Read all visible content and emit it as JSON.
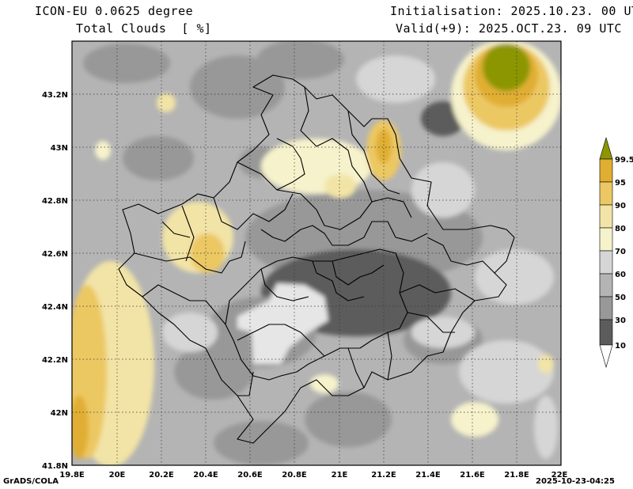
{
  "header": {
    "model_line": "ICON-EU 0.0625 degree",
    "variable_line": "Total Clouds  [ %]",
    "init_line": "Initialisation: 2025.10.23. 00 UTC",
    "valid_line": "Valid(+9): 2025.OCT.23. 09 UTC"
  },
  "footer": {
    "credit": "GrADS/COLA",
    "timestamp": "2025-10-23-04:25"
  },
  "map": {
    "lat_range": [
      41.8,
      43.4
    ],
    "lon_range": [
      19.8,
      22.0
    ],
    "lat_ticks": [
      {
        "value": 41.8,
        "label": "41.8N"
      },
      {
        "value": 42.0,
        "label": "42N"
      },
      {
        "value": 42.2,
        "label": "42.2N"
      },
      {
        "value": 42.4,
        "label": "42.4N"
      },
      {
        "value": 42.6,
        "label": "42.6N"
      },
      {
        "value": 42.8,
        "label": "42.8N"
      },
      {
        "value": 43.0,
        "label": "43N"
      },
      {
        "value": 43.2,
        "label": "43.2N"
      }
    ],
    "lon_ticks": [
      {
        "value": 19.8,
        "label": "19.8E"
      },
      {
        "value": 20.0,
        "label": "20E"
      },
      {
        "value": 20.2,
        "label": "20.2E"
      },
      {
        "value": 20.4,
        "label": "20.4E"
      },
      {
        "value": 20.6,
        "label": "20.6E"
      },
      {
        "value": 20.8,
        "label": "20.8E"
      },
      {
        "value": 21.0,
        "label": "21E"
      },
      {
        "value": 21.2,
        "label": "21.2E"
      },
      {
        "value": 21.4,
        "label": "21.4E"
      },
      {
        "value": 21.6,
        "label": "21.6E"
      },
      {
        "value": 21.8,
        "label": "21.8E"
      },
      {
        "value": 22.0,
        "label": "22E"
      }
    ],
    "grid_lines": true
  },
  "colorbar": {
    "levels": [
      {
        "label": "99.5",
        "color": "#8c9600"
      },
      {
        "label": "95",
        "color": "#e0ae30"
      },
      {
        "label": "90",
        "color": "#ecc864"
      },
      {
        "label": "80",
        "color": "#f2e4a6"
      },
      {
        "label": "70",
        "color": "#f6f2cc"
      },
      {
        "label": "60",
        "color": "#d6d6d6"
      },
      {
        "label": "50",
        "color": "#b4b4b4"
      },
      {
        "label": "30",
        "color": "#989898"
      },
      {
        "label": "10",
        "color": "#5c5c5c"
      }
    ],
    "below_color": "#ffffff",
    "above_color": "#8c9600"
  },
  "colors": {
    "c10": "#5c5c5c",
    "c30": "#989898",
    "c50": "#b4b4b4",
    "c60": "#d6d6d6",
    "c70": "#f6f2cc",
    "c80": "#f2e4a6",
    "c90": "#ecc864",
    "c95": "#e0ae30",
    "c995": "#8c9600",
    "clear": "#e6e6e6"
  }
}
